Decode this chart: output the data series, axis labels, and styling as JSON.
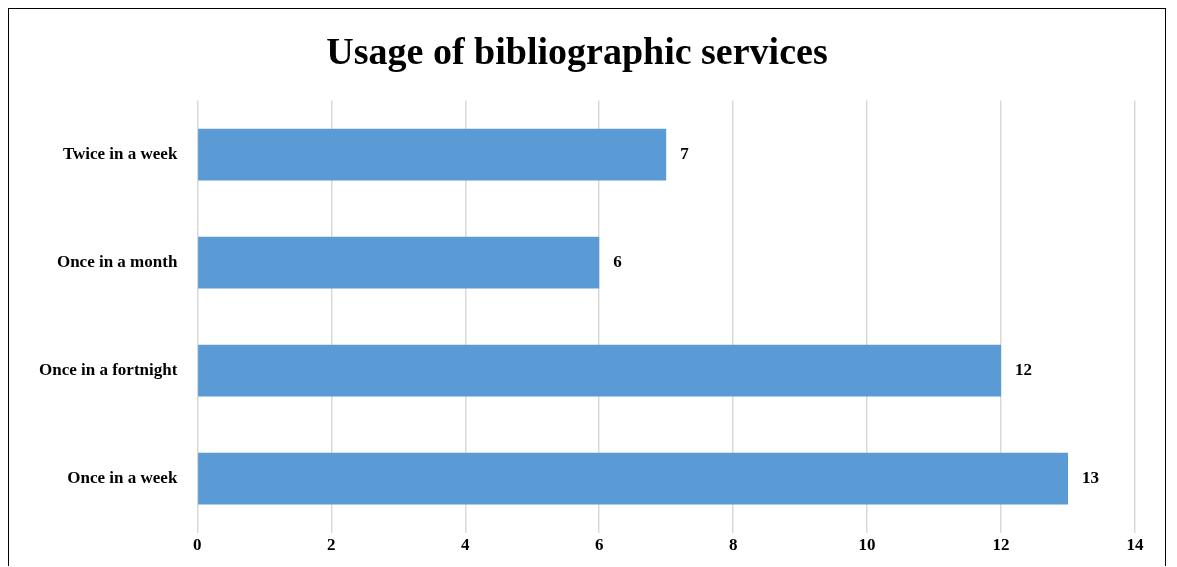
{
  "chart_data": {
    "type": "bar",
    "title": "Usage of bibliographic services",
    "orientation": "horizontal",
    "categories": [
      "Twice in a week",
      "Once in a month",
      "Once in a fortnight",
      "Once in a week"
    ],
    "values": [
      7,
      6,
      12,
      13
    ],
    "color": "#5b9bd5",
    "xlim": [
      0,
      14
    ],
    "xticks": [
      0,
      2,
      4,
      6,
      8,
      10,
      12,
      14
    ],
    "grid": "x",
    "data_labels": true,
    "legend": false
  }
}
